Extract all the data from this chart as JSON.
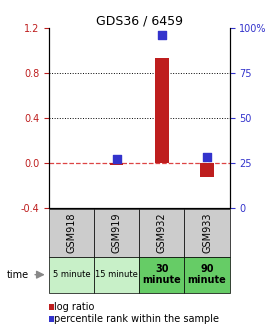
{
  "title": "GDS36 / 6459",
  "samples": [
    "GSM918",
    "GSM919",
    "GSM932",
    "GSM933"
  ],
  "time_labels_small": [
    "5 minute",
    "15 minute"
  ],
  "time_labels_large": [
    "30\nminute",
    "90\nminute"
  ],
  "log_ratio": [
    0.0,
    -0.02,
    0.93,
    -0.13
  ],
  "percentile_rank": [
    null,
    27,
    96,
    28
  ],
  "ylim_left": [
    -0.4,
    1.2
  ],
  "ylim_right": [
    0,
    100
  ],
  "yticks_left": [
    -0.4,
    0.0,
    0.4,
    0.8,
    1.2
  ],
  "yticks_right": [
    0,
    25,
    50,
    75,
    100
  ],
  "bar_color": "#be1e1e",
  "dot_color": "#3333cc",
  "bg_light_green": "#c8f0c8",
  "bg_green": "#66cc66",
  "bg_gray": "#cccccc",
  "bar_width": 0.3,
  "dot_size": 40,
  "title_fontsize": 9,
  "tick_fontsize": 7,
  "table_fontsize_small": 6,
  "table_fontsize_large": 7,
  "legend_fontsize": 7
}
